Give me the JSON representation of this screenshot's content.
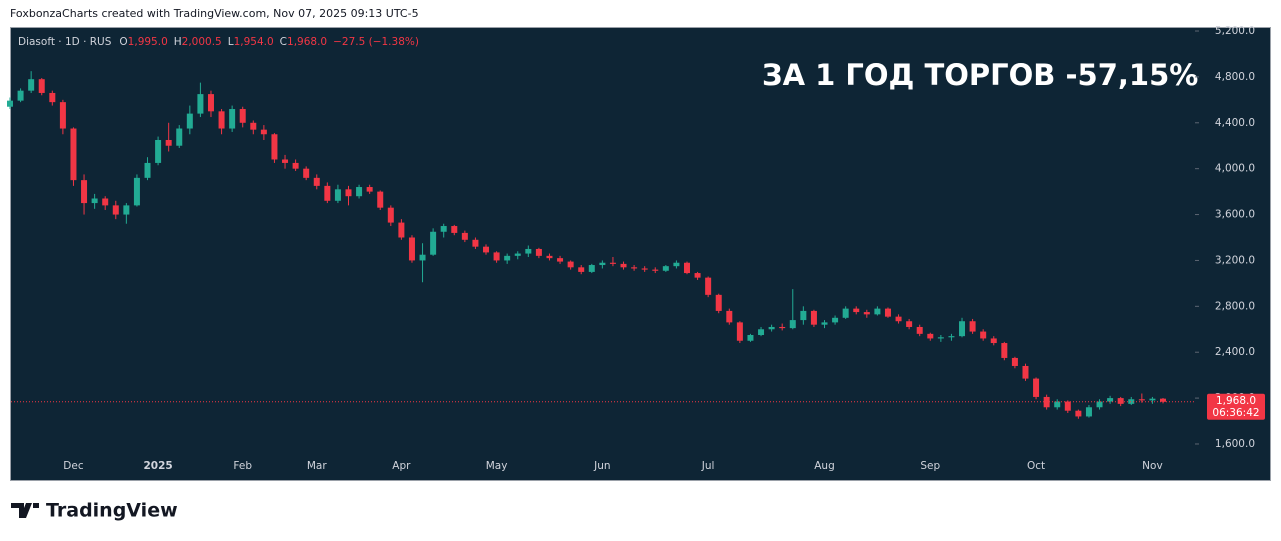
{
  "header": {
    "credit": "FoxbonzaCharts created with TradingView.com, Nov 07, 2025 09:13 UTC-5"
  },
  "footer": {
    "brand": "TradingView"
  },
  "chart_data": {
    "type": "candlestick",
    "symbol": "Diasoft · 1D · RUS",
    "ohlc_legend": [
      {
        "key": "O",
        "text": "1,995.0"
      },
      {
        "key": "H",
        "text": "2,000.5"
      },
      {
        "key": "L",
        "text": "1,954.0"
      },
      {
        "key": "C",
        "text": "1,968.0"
      }
    ],
    "change": "−27.5 (−1.38%)",
    "annotation": "ЗА 1 ГОД ТОРГОВ -57,15%",
    "up_color": "#22ab94",
    "down_color": "#f23645",
    "grid": false,
    "ylim": [
      1286,
      5235
    ],
    "yticks": [
      {
        "value": 1600,
        "label": "1,600.0"
      },
      {
        "value": 2000,
        "label": "2,000.0"
      },
      {
        "value": 2400,
        "label": "2,400.0"
      },
      {
        "value": 2800,
        "label": "2,800.0"
      },
      {
        "value": 3200,
        "label": "3,200.0"
      },
      {
        "value": 3600,
        "label": "3,600.0"
      },
      {
        "value": 4000,
        "label": "4,000.0"
      },
      {
        "value": 4400,
        "label": "4,400.0"
      },
      {
        "value": 4800,
        "label": "4,800.0"
      },
      {
        "value": 5200,
        "label": "5,200.0"
      }
    ],
    "last_price": {
      "value": 1968,
      "label": "1,968.0"
    },
    "countdown": "06:36:42",
    "categories": [
      null,
      null,
      null,
      null,
      null,
      null,
      "Dec",
      null,
      null,
      null,
      null,
      null,
      null,
      null,
      "2025",
      null,
      null,
      null,
      null,
      null,
      null,
      null,
      "Feb",
      null,
      null,
      null,
      null,
      null,
      null,
      "Mar",
      null,
      null,
      null,
      null,
      null,
      null,
      null,
      "Apr",
      null,
      null,
      null,
      null,
      null,
      null,
      null,
      null,
      "May",
      null,
      null,
      null,
      null,
      null,
      null,
      null,
      null,
      null,
      "Jun",
      null,
      null,
      null,
      null,
      null,
      null,
      null,
      null,
      null,
      "Jul",
      null,
      null,
      null,
      null,
      null,
      null,
      null,
      null,
      null,
      null,
      "Aug",
      null,
      null,
      null,
      null,
      null,
      null,
      null,
      null,
      null,
      "Sep",
      null,
      null,
      null,
      null,
      null,
      null,
      null,
      null,
      null,
      "Oct",
      null,
      null,
      null,
      null,
      null,
      null,
      null,
      null,
      null,
      null,
      "Nov",
      null
    ],
    "ohlc": [
      [
        4540,
        4620,
        4520,
        4593
      ],
      [
        4593,
        4700,
        4580,
        4680
      ],
      [
        4680,
        4850,
        4660,
        4780
      ],
      [
        4780,
        4790,
        4640,
        4660
      ],
      [
        4660,
        4680,
        4550,
        4580
      ],
      [
        4580,
        4600,
        4300,
        4350
      ],
      [
        4350,
        4360,
        3850,
        3900
      ],
      [
        3900,
        3950,
        3600,
        3700
      ],
      [
        3700,
        3780,
        3650,
        3740
      ],
      [
        3740,
        3760,
        3640,
        3680
      ],
      [
        3680,
        3720,
        3560,
        3600
      ],
      [
        3600,
        3700,
        3520,
        3680
      ],
      [
        3680,
        3950,
        3670,
        3920
      ],
      [
        3920,
        4100,
        3900,
        4050
      ],
      [
        4050,
        4280,
        4030,
        4250
      ],
      [
        4250,
        4400,
        4150,
        4200
      ],
      [
        4200,
        4380,
        4180,
        4350
      ],
      [
        4350,
        4550,
        4300,
        4480
      ],
      [
        4480,
        4750,
        4450,
        4650
      ],
      [
        4650,
        4680,
        4450,
        4500
      ],
      [
        4500,
        4520,
        4300,
        4350
      ],
      [
        4350,
        4550,
        4320,
        4520
      ],
      [
        4520,
        4540,
        4360,
        4400
      ],
      [
        4400,
        4420,
        4300,
        4340
      ],
      [
        4340,
        4380,
        4250,
        4300
      ],
      [
        4300,
        4310,
        4050,
        4080
      ],
      [
        4080,
        4120,
        4000,
        4050
      ],
      [
        4050,
        4080,
        3980,
        4000
      ],
      [
        4000,
        4020,
        3900,
        3920
      ],
      [
        3920,
        3950,
        3820,
        3850
      ],
      [
        3850,
        3880,
        3700,
        3720
      ],
      [
        3720,
        3860,
        3700,
        3820
      ],
      [
        3820,
        3850,
        3680,
        3760
      ],
      [
        3760,
        3860,
        3740,
        3840
      ],
      [
        3840,
        3860,
        3780,
        3800
      ],
      [
        3800,
        3810,
        3640,
        3660
      ],
      [
        3660,
        3680,
        3500,
        3530
      ],
      [
        3530,
        3560,
        3380,
        3400
      ],
      [
        3400,
        3420,
        3180,
        3200
      ],
      [
        3200,
        3350,
        3010,
        3250
      ],
      [
        3250,
        3480,
        3240,
        3450
      ],
      [
        3450,
        3520,
        3400,
        3500
      ],
      [
        3500,
        3510,
        3420,
        3440
      ],
      [
        3440,
        3460,
        3360,
        3380
      ],
      [
        3380,
        3400,
        3300,
        3320
      ],
      [
        3320,
        3340,
        3250,
        3270
      ],
      [
        3270,
        3280,
        3180,
        3200
      ],
      [
        3200,
        3260,
        3170,
        3240
      ],
      [
        3240,
        3280,
        3210,
        3260
      ],
      [
        3260,
        3330,
        3230,
        3300
      ],
      [
        3300,
        3310,
        3220,
        3240
      ],
      [
        3240,
        3260,
        3200,
        3220
      ],
      [
        3220,
        3240,
        3170,
        3190
      ],
      [
        3190,
        3200,
        3120,
        3140
      ],
      [
        3140,
        3160,
        3080,
        3100
      ],
      [
        3100,
        3170,
        3090,
        3160
      ],
      [
        3160,
        3200,
        3130,
        3180
      ],
      [
        3180,
        3230,
        3150,
        3170
      ],
      [
        3170,
        3190,
        3120,
        3140
      ],
      [
        3140,
        3160,
        3110,
        3130
      ],
      [
        3130,
        3150,
        3100,
        3120
      ],
      [
        3120,
        3140,
        3090,
        3110
      ],
      [
        3110,
        3160,
        3100,
        3150
      ],
      [
        3150,
        3200,
        3130,
        3180
      ],
      [
        3180,
        3190,
        3080,
        3090
      ],
      [
        3090,
        3100,
        3030,
        3050
      ],
      [
        3050,
        3060,
        2880,
        2900
      ],
      [
        2900,
        2910,
        2740,
        2760
      ],
      [
        2760,
        2780,
        2640,
        2660
      ],
      [
        2660,
        2670,
        2480,
        2500
      ],
      [
        2500,
        2560,
        2490,
        2550
      ],
      [
        2550,
        2620,
        2540,
        2600
      ],
      [
        2600,
        2640,
        2580,
        2620
      ],
      [
        2620,
        2650,
        2590,
        2610
      ],
      [
        2610,
        2950,
        2600,
        2680
      ],
      [
        2680,
        2800,
        2640,
        2760
      ],
      [
        2760,
        2770,
        2620,
        2640
      ],
      [
        2640,
        2680,
        2610,
        2660
      ],
      [
        2660,
        2720,
        2640,
        2700
      ],
      [
        2700,
        2800,
        2690,
        2780
      ],
      [
        2780,
        2800,
        2730,
        2750
      ],
      [
        2750,
        2770,
        2700,
        2730
      ],
      [
        2730,
        2800,
        2720,
        2780
      ],
      [
        2780,
        2790,
        2700,
        2710
      ],
      [
        2710,
        2730,
        2650,
        2670
      ],
      [
        2670,
        2690,
        2600,
        2620
      ],
      [
        2620,
        2640,
        2540,
        2560
      ],
      [
        2560,
        2570,
        2500,
        2520
      ],
      [
        2520,
        2550,
        2490,
        2530
      ],
      [
        2530,
        2560,
        2500,
        2540
      ],
      [
        2540,
        2700,
        2530,
        2670
      ],
      [
        2670,
        2690,
        2560,
        2580
      ],
      [
        2580,
        2600,
        2500,
        2520
      ],
      [
        2520,
        2540,
        2460,
        2480
      ],
      [
        2480,
        2490,
        2330,
        2350
      ],
      [
        2350,
        2360,
        2260,
        2280
      ],
      [
        2280,
        2300,
        2150,
        2170
      ],
      [
        2170,
        2180,
        1990,
        2010
      ],
      [
        2010,
        2030,
        1900,
        1920
      ],
      [
        1920,
        1990,
        1900,
        1970
      ],
      [
        1970,
        1980,
        1870,
        1890
      ],
      [
        1890,
        1900,
        1820,
        1840
      ],
      [
        1840,
        1940,
        1830,
        1920
      ],
      [
        1920,
        1990,
        1900,
        1970
      ],
      [
        1970,
        2020,
        1950,
        2000
      ],
      [
        2000,
        2010,
        1930,
        1950
      ],
      [
        1950,
        2010,
        1940,
        1990
      ],
      [
        1990,
        2040,
        1960,
        1980
      ],
      [
        1980,
        2010,
        1950,
        1995
      ],
      [
        1995,
        2000.5,
        1954,
        1968
      ]
    ]
  }
}
